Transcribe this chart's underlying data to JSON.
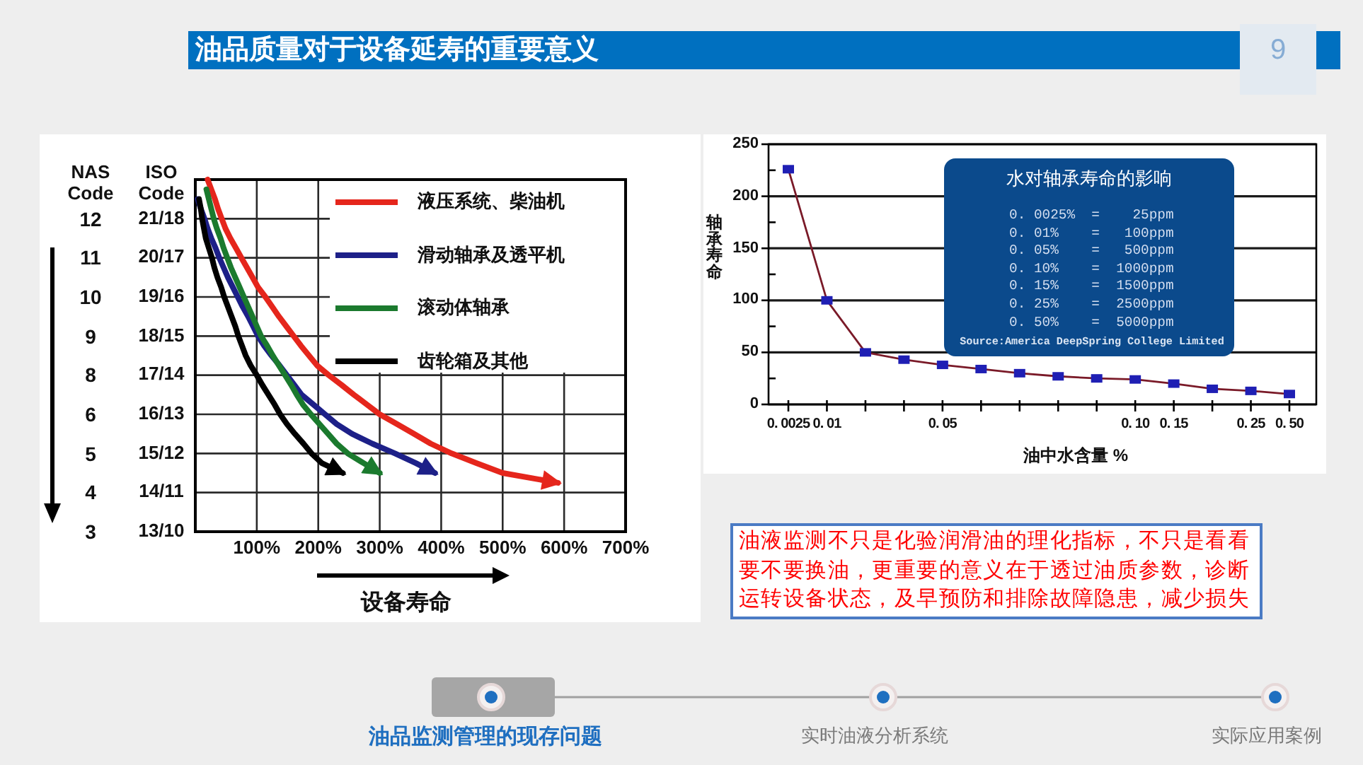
{
  "chart_data": [
    {
      "type": "line",
      "orientation": "horizontal",
      "xlabel": "设备寿命",
      "ylabel": "ISO Code",
      "y2label": "NAS Code",
      "categories": [
        null,
        null,
        null,
        null,
        "21/18",
        null,
        null,
        null,
        "20/17",
        null,
        null,
        null,
        "19/16",
        null,
        null,
        null,
        "18/15",
        null,
        null,
        null,
        "17/14",
        null,
        null,
        null,
        "16/13",
        null,
        null,
        null,
        "15/12",
        null,
        null,
        null,
        "14/11",
        null,
        null,
        null,
        "13/10"
      ],
      "y2_categories": [
        null,
        null,
        null,
        null,
        "12",
        null,
        null,
        null,
        "11",
        null,
        null,
        null,
        "10",
        null,
        null,
        null,
        "9",
        null,
        null,
        null,
        "8",
        null,
        null,
        null,
        "6",
        null,
        null,
        null,
        "5",
        null,
        null,
        null,
        "4",
        null,
        null,
        null,
        "3"
      ],
      "xlim": [
        0,
        700
      ],
      "xticks": [
        {
          "value": 100,
          "label": "100%"
        },
        {
          "value": 200,
          "label": "200%"
        },
        {
          "value": 300,
          "label": "300%"
        },
        {
          "value": 400,
          "label": "400%"
        },
        {
          "value": 500,
          "label": "500%"
        },
        {
          "value": 600,
          "label": "600%"
        },
        {
          "value": 700,
          "label": "700%"
        }
      ],
      "grid": true,
      "legend": "top right",
      "line_style": "solid",
      "series": [
        {
          "name": "液压系统、柴油机",
          "color": "#e5261c",
          "values": [
            20,
            26,
            32,
            37,
            43,
            49,
            57,
            66,
            75,
            84,
            93,
            102,
            114,
            125,
            136,
            148,
            160,
            172,
            185,
            198,
            217,
            238,
            258,
            279,
            300,
            328,
            356,
            383,
            417,
            458,
            500,
            590,
            null,
            null,
            null,
            null,
            null
          ]
        },
        {
          "name": "滑动轴承及透平机",
          "color": "#1d2088",
          "values": [
            null,
            null,
            4,
            9,
            15,
            20,
            26,
            33,
            39,
            46,
            53,
            61,
            69,
            77,
            86,
            94,
            102,
            112,
            124,
            137,
            149,
            161,
            173,
            192,
            211,
            230,
            255,
            288,
            325,
            359,
            390,
            null,
            null,
            null,
            null,
            null,
            null
          ]
        },
        {
          "name": "滚动体轴承",
          "color": "#1b7a2e",
          "values": [
            null,
            18,
            22,
            26,
            30,
            35,
            41,
            46,
            52,
            58,
            65,
            72,
            79,
            86,
            93,
            100,
            107,
            117,
            126,
            136,
            146,
            156,
            165,
            175,
            188,
            202,
            216,
            230,
            248,
            274,
            300,
            null,
            null,
            null,
            null,
            null,
            null
          ]
        },
        {
          "name": "齿轮箱及其他",
          "color": "#000000",
          "values": [
            null,
            null,
            6,
            9,
            11,
            14,
            17,
            22,
            27,
            31,
            36,
            42,
            47,
            53,
            59,
            65,
            70,
            76,
            82,
            90,
            100,
            109,
            119,
            129,
            138,
            149,
            162,
            176,
            189,
            206,
            240,
            null,
            null,
            null,
            null,
            null,
            null
          ]
        }
      ]
    },
    {
      "type": "line",
      "categories": [
        "0. 0025",
        "0. 01",
        null,
        null,
        "0. 05",
        null,
        null,
        null,
        null,
        "0. 10",
        "0. 15",
        null,
        "0. 25",
        "0. 50"
      ],
      "xlabel": "油中水含量 %",
      "ylabel": "轴承寿命",
      "ylim": [
        0,
        250
      ],
      "yticks": [
        0,
        {
          "value": 25,
          "label": null
        },
        50,
        {
          "value": 75,
          "label": null
        },
        100,
        {
          "value": 125,
          "label": null
        },
        150,
        {
          "value": 175,
          "label": null
        },
        200,
        {
          "value": 225,
          "label": null
        },
        250
      ],
      "grid": "y",
      "marker": "square",
      "series": [
        {
          "color": "#7a1a28",
          "colors": [
            "#1f1fb4",
            "#1f1fb4",
            "#1f1fb4",
            "#1f1fb4",
            "#1f1fb4",
            "#1f1fb4",
            "#1f1fb4",
            "#1f1fb4",
            "#1f1fb4",
            "#1f1fb4",
            "#1f1fb4",
            "#1f1fb4",
            "#1f1fb4",
            "#1f1fb4"
          ],
          "values": [
            226,
            100,
            50,
            43,
            38,
            34,
            30,
            27,
            25,
            24,
            20,
            15,
            13,
            10
          ]
        }
      ],
      "annotations": [
        "水对轴承寿命的影响",
        "0. 0025%  =    25ppm",
        "0. 01%    =   100ppm",
        "0. 05%    =   500ppm",
        "0. 10%    =  1000ppm",
        "0. 15%    =  1500ppm",
        "0. 25%    =  2500ppm",
        "0. 50%    =  5000ppm",
        "Source:America DeepSpring College Limited"
      ]
    },
    {
      "type": "other",
      "title": "油品质量对于设备延寿的重要意义",
      "annotations": [
        "9",
        "油液监测不只是化验润滑油的理化指标，不只是看看要不要换油，更重要的意义在于透过油质参数，诊断运转设备状态，及早预防和排除故障隐患，减少损失",
        "油品监测管理的现存问题",
        "实时油液分析系统",
        "实际应用案例"
      ]
    }
  ]
}
